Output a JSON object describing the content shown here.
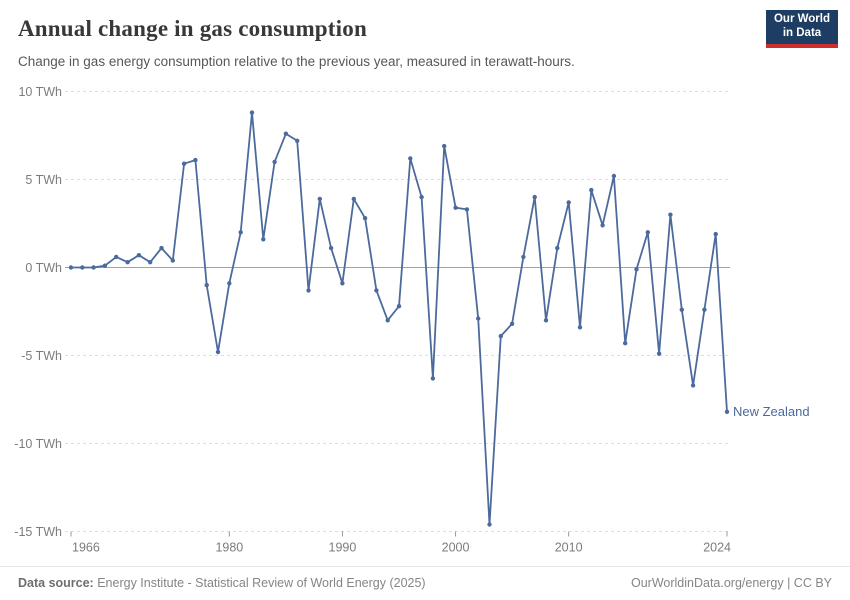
{
  "header": {
    "title": "Annual change in gas consumption",
    "subtitle": "Change in gas energy consumption relative to the previous year, measured in terawatt-hours.",
    "logo_line1": "Our World",
    "logo_line2": "in Data"
  },
  "footer": {
    "datasource_label": "Data source:",
    "datasource_text": " Energy Institute - Statistical Review of World Energy (2025)",
    "credit_text": "OurWorldinData.org/energy | CC BY"
  },
  "chart_data": {
    "type": "line",
    "title": "Annual change in gas consumption",
    "entity_label": "New Zealand",
    "unit": "TWh",
    "xlim": [
      1966,
      2024
    ],
    "ylim": [
      -15,
      10
    ],
    "xticks": [
      1966,
      1980,
      1990,
      2000,
      2010,
      2024
    ],
    "yticks": [
      10,
      5,
      0,
      -5,
      -10,
      -15
    ],
    "ytick_labels": [
      "10 TWh",
      "5 TWh",
      "0 TWh",
      "-5 TWh",
      "-10 TWh",
      "-15 TWh"
    ],
    "grid": true,
    "legend_position": "end-of-line",
    "x": [
      1966,
      1967,
      1968,
      1969,
      1970,
      1971,
      1972,
      1973,
      1974,
      1975,
      1976,
      1977,
      1978,
      1979,
      1980,
      1981,
      1982,
      1983,
      1984,
      1985,
      1986,
      1987,
      1988,
      1989,
      1990,
      1991,
      1992,
      1993,
      1994,
      1995,
      1996,
      1997,
      1998,
      1999,
      2000,
      2001,
      2002,
      2003,
      2004,
      2005,
      2006,
      2007,
      2008,
      2009,
      2010,
      2011,
      2012,
      2013,
      2014,
      2015,
      2016,
      2017,
      2018,
      2019,
      2020,
      2021,
      2022,
      2023,
      2024
    ],
    "series": [
      {
        "name": "New Zealand",
        "values": [
          0.0,
          0.0,
          0.0,
          0.1,
          0.6,
          0.3,
          0.7,
          0.3,
          1.1,
          0.4,
          5.9,
          6.1,
          -1.0,
          -4.8,
          -0.9,
          2.0,
          8.8,
          1.6,
          6.0,
          7.6,
          7.2,
          -1.3,
          3.9,
          1.1,
          -0.9,
          3.9,
          2.8,
          -1.3,
          -3.0,
          -2.2,
          6.2,
          4.0,
          -6.3,
          6.9,
          3.4,
          3.3,
          -2.9,
          -14.6,
          -3.9,
          -3.2,
          0.6,
          4.0,
          -3.0,
          1.1,
          3.7,
          -3.4,
          4.4,
          2.4,
          5.2,
          -4.3,
          -0.1,
          2.0,
          -4.9,
          3.0,
          -2.4,
          -6.7,
          -2.4,
          1.9,
          -8.2
        ]
      }
    ],
    "colors": {
      "line": "#4c6a9c",
      "grid": "#dddddd",
      "zero_line": "#a3a3a3",
      "tick_text": "#7c7c7c",
      "entity_label": "#4c6a9c"
    }
  }
}
